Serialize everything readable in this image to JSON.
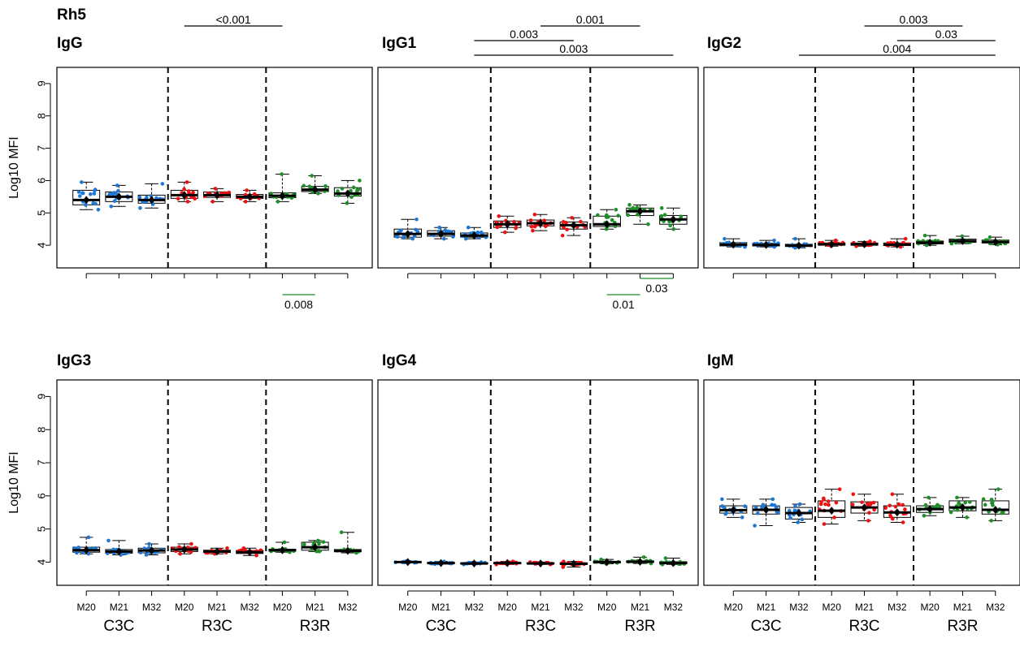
{
  "figure_title": "Rh5",
  "ylabel": "Log10 MFI",
  "colors": {
    "C3C": "#1f77d4",
    "R3C": "#ee1111",
    "R3R": "#1f8f2a"
  },
  "chart_data": [
    {
      "type": "box",
      "title": "IgG",
      "ylabel": "Log10 MFI",
      "ylim": [
        3.3,
        9.5
      ],
      "yticks": [
        "4",
        "5",
        "6",
        "7",
        "8",
        "9"
      ],
      "groups": [
        "C3C",
        "R3C",
        "R3R"
      ],
      "categories": [
        "M20",
        "M21",
        "M32",
        "M20",
        "M21",
        "M32",
        "M20",
        "M21",
        "M32"
      ],
      "show_x_labels": false,
      "series": [
        {
          "group": "C3C",
          "timepoint": "M20",
          "min": 5.1,
          "q1": 5.25,
          "median": 5.4,
          "q3": 5.7,
          "max": 5.95
        },
        {
          "group": "C3C",
          "timepoint": "M21",
          "min": 5.2,
          "q1": 5.35,
          "median": 5.5,
          "q3": 5.65,
          "max": 5.85
        },
        {
          "group": "C3C",
          "timepoint": "M32",
          "min": 5.15,
          "q1": 5.3,
          "median": 5.4,
          "q3": 5.55,
          "max": 5.9
        },
        {
          "group": "R3C",
          "timepoint": "M20",
          "min": 5.35,
          "q1": 5.45,
          "median": 5.55,
          "q3": 5.7,
          "max": 5.95
        },
        {
          "group": "R3C",
          "timepoint": "M21",
          "min": 5.35,
          "q1": 5.48,
          "median": 5.55,
          "q3": 5.65,
          "max": 5.75
        },
        {
          "group": "R3C",
          "timepoint": "M32",
          "min": 5.35,
          "q1": 5.45,
          "median": 5.5,
          "q3": 5.57,
          "max": 5.7
        },
        {
          "group": "R3R",
          "timepoint": "M20",
          "min": 5.35,
          "q1": 5.47,
          "median": 5.53,
          "q3": 5.62,
          "max": 6.2
        },
        {
          "group": "R3R",
          "timepoint": "M21",
          "min": 5.6,
          "q1": 5.66,
          "median": 5.72,
          "q3": 5.82,
          "max": 6.15
        },
        {
          "group": "R3R",
          "timepoint": "M32",
          "min": 5.3,
          "q1": 5.52,
          "median": 5.6,
          "q3": 5.78,
          "max": 6.0
        }
      ],
      "annotations": [
        {
          "text": "<0.001",
          "from": 4,
          "to": 7,
          "position": "top",
          "level": 1,
          "color": "#000000"
        },
        {
          "text": "0.008",
          "from": 7,
          "to": 8,
          "position": "bottom",
          "level": 1,
          "color": "#1f8f2a"
        }
      ]
    },
    {
      "type": "box",
      "title": "IgG1",
      "ylim": [
        3.3,
        9.5
      ],
      "groups": [
        "C3C",
        "R3C",
        "R3R"
      ],
      "categories": [
        "M20",
        "M21",
        "M32",
        "M20",
        "M21",
        "M32",
        "M20",
        "M21",
        "M32"
      ],
      "show_x_labels": false,
      "series": [
        {
          "group": "C3C",
          "timepoint": "M20",
          "min": 4.2,
          "q1": 4.25,
          "median": 4.35,
          "q3": 4.5,
          "max": 4.8
        },
        {
          "group": "C3C",
          "timepoint": "M21",
          "min": 4.2,
          "q1": 4.28,
          "median": 4.35,
          "q3": 4.45,
          "max": 4.55
        },
        {
          "group": "C3C",
          "timepoint": "M32",
          "min": 4.2,
          "q1": 4.25,
          "median": 4.3,
          "q3": 4.38,
          "max": 4.55
        },
        {
          "group": "R3C",
          "timepoint": "M20",
          "min": 4.4,
          "q1": 4.55,
          "median": 4.65,
          "q3": 4.75,
          "max": 4.9
        },
        {
          "group": "R3C",
          "timepoint": "M21",
          "min": 4.45,
          "q1": 4.6,
          "median": 4.68,
          "q3": 4.78,
          "max": 4.95
        },
        {
          "group": "R3C",
          "timepoint": "M32",
          "min": 4.3,
          "q1": 4.5,
          "median": 4.62,
          "q3": 4.72,
          "max": 4.85
        },
        {
          "group": "R3R",
          "timepoint": "M20",
          "min": 4.5,
          "q1": 4.58,
          "median": 4.65,
          "q3": 4.9,
          "max": 5.1
        },
        {
          "group": "R3R",
          "timepoint": "M21",
          "min": 4.65,
          "q1": 4.92,
          "median": 5.05,
          "q3": 5.15,
          "max": 5.25
        },
        {
          "group": "R3R",
          "timepoint": "M32",
          "min": 4.5,
          "q1": 4.65,
          "median": 4.8,
          "q3": 4.92,
          "max": 5.15
        }
      ],
      "annotations": [
        {
          "text": "0.003",
          "from": 3,
          "to": 6,
          "position": "top",
          "level": 2,
          "color": "#000000"
        },
        {
          "text": "0.001",
          "from": 5,
          "to": 8,
          "position": "top",
          "level": 1,
          "color": "#000000"
        },
        {
          "text": "0.003",
          "from": 3,
          "to": 9,
          "position": "top",
          "level": 3,
          "color": "#000000"
        },
        {
          "text": "0.03",
          "from": 8,
          "to": 9,
          "position": "bottom",
          "level": 1,
          "color": "#1f8f2a"
        },
        {
          "text": "0.01",
          "from": 7,
          "to": 8,
          "position": "bottom",
          "level": 2,
          "color": "#1f8f2a"
        }
      ]
    },
    {
      "type": "box",
      "title": "IgG2",
      "ylim": [
        3.3,
        9.5
      ],
      "groups": [
        "C3C",
        "R3C",
        "R3R"
      ],
      "categories": [
        "M20",
        "M21",
        "M32",
        "M20",
        "M21",
        "M32",
        "M20",
        "M21",
        "M32"
      ],
      "show_x_labels": false,
      "series": [
        {
          "group": "C3C",
          "timepoint": "M20",
          "min": 3.95,
          "q1": 3.98,
          "median": 4.02,
          "q3": 4.08,
          "max": 4.2
        },
        {
          "group": "C3C",
          "timepoint": "M21",
          "min": 3.95,
          "q1": 3.98,
          "median": 4.01,
          "q3": 4.06,
          "max": 4.15
        },
        {
          "group": "C3C",
          "timepoint": "M32",
          "min": 3.92,
          "q1": 3.96,
          "median": 3.99,
          "q3": 4.03,
          "max": 4.2
        },
        {
          "group": "R3C",
          "timepoint": "M20",
          "min": 3.97,
          "q1": 4.0,
          "median": 4.03,
          "q3": 4.07,
          "max": 4.15
        },
        {
          "group": "R3C",
          "timepoint": "M21",
          "min": 3.97,
          "q1": 4.0,
          "median": 4.03,
          "q3": 4.07,
          "max": 4.12
        },
        {
          "group": "R3C",
          "timepoint": "M32",
          "min": 3.95,
          "q1": 3.99,
          "median": 4.02,
          "q3": 4.07,
          "max": 4.2
        },
        {
          "group": "R3R",
          "timepoint": "M20",
          "min": 4.0,
          "q1": 4.04,
          "median": 4.08,
          "q3": 4.13,
          "max": 4.3
        },
        {
          "group": "R3R",
          "timepoint": "M21",
          "min": 4.05,
          "q1": 4.09,
          "median": 4.13,
          "q3": 4.19,
          "max": 4.28
        },
        {
          "group": "R3R",
          "timepoint": "M32",
          "min": 4.02,
          "q1": 4.07,
          "median": 4.1,
          "q3": 4.16,
          "max": 4.25
        }
      ],
      "annotations": [
        {
          "text": "0.003",
          "from": 5,
          "to": 8,
          "position": "top",
          "level": 1,
          "color": "#000000"
        },
        {
          "text": "0.03",
          "from": 6,
          "to": 9,
          "position": "top",
          "level": 2,
          "color": "#000000"
        },
        {
          "text": "0.004",
          "from": 3,
          "to": 9,
          "position": "top",
          "level": 3,
          "color": "#000000"
        }
      ]
    },
    {
      "type": "box",
      "title": "IgG3",
      "ylabel": "Log10 MFI",
      "ylim": [
        3.3,
        9.5
      ],
      "yticks": [
        "4",
        "5",
        "6",
        "7",
        "8",
        "9"
      ],
      "groups": [
        "C3C",
        "R3C",
        "R3R"
      ],
      "categories": [
        "M20",
        "M21",
        "M32",
        "M20",
        "M21",
        "M32",
        "M20",
        "M21",
        "M32"
      ],
      "show_x_labels": true,
      "series": [
        {
          "group": "C3C",
          "timepoint": "M20",
          "min": 4.25,
          "q1": 4.3,
          "median": 4.36,
          "q3": 4.45,
          "max": 4.75
        },
        {
          "group": "C3C",
          "timepoint": "M21",
          "min": 4.22,
          "q1": 4.27,
          "median": 4.32,
          "q3": 4.38,
          "max": 4.65
        },
        {
          "group": "C3C",
          "timepoint": "M32",
          "min": 4.22,
          "q1": 4.28,
          "median": 4.35,
          "q3": 4.42,
          "max": 4.55
        },
        {
          "group": "R3C",
          "timepoint": "M20",
          "min": 4.25,
          "q1": 4.32,
          "median": 4.38,
          "q3": 4.45,
          "max": 4.55
        },
        {
          "group": "R3C",
          "timepoint": "M21",
          "min": 4.25,
          "q1": 4.29,
          "median": 4.32,
          "q3": 4.36,
          "max": 4.42
        },
        {
          "group": "R3C",
          "timepoint": "M32",
          "min": 4.2,
          "q1": 4.26,
          "median": 4.3,
          "q3": 4.35,
          "max": 4.42
        },
        {
          "group": "R3R",
          "timepoint": "M20",
          "min": 4.3,
          "q1": 4.33,
          "median": 4.36,
          "q3": 4.39,
          "max": 4.6
        },
        {
          "group": "R3R",
          "timepoint": "M21",
          "min": 4.32,
          "q1": 4.36,
          "median": 4.45,
          "q3": 4.6,
          "max": 4.65
        },
        {
          "group": "R3R",
          "timepoint": "M32",
          "min": 4.28,
          "q1": 4.31,
          "median": 4.34,
          "q3": 4.38,
          "max": 4.9
        }
      ],
      "annotations": []
    },
    {
      "type": "box",
      "title": "IgG4",
      "ylim": [
        3.3,
        9.5
      ],
      "groups": [
        "C3C",
        "R3C",
        "R3R"
      ],
      "categories": [
        "M20",
        "M21",
        "M32",
        "M20",
        "M21",
        "M32",
        "M20",
        "M21",
        "M32"
      ],
      "show_x_labels": true,
      "series": [
        {
          "group": "C3C",
          "timepoint": "M20",
          "min": 3.98,
          "q1": 3.99,
          "median": 4.0,
          "q3": 4.01,
          "max": 4.03
        },
        {
          "group": "C3C",
          "timepoint": "M21",
          "min": 3.94,
          "q1": 3.96,
          "median": 3.97,
          "q3": 3.99,
          "max": 4.02
        },
        {
          "group": "C3C",
          "timepoint": "M32",
          "min": 3.93,
          "q1": 3.95,
          "median": 3.96,
          "q3": 3.98,
          "max": 4.0
        },
        {
          "group": "R3C",
          "timepoint": "M20",
          "min": 3.93,
          "q1": 3.95,
          "median": 3.97,
          "q3": 3.99,
          "max": 4.02
        },
        {
          "group": "R3C",
          "timepoint": "M21",
          "min": 3.93,
          "q1": 3.95,
          "median": 3.96,
          "q3": 3.98,
          "max": 4.0
        },
        {
          "group": "R3C",
          "timepoint": "M32",
          "min": 3.85,
          "q1": 3.93,
          "median": 3.95,
          "q3": 3.98,
          "max": 4.02
        },
        {
          "group": "R3R",
          "timepoint": "M20",
          "min": 3.95,
          "q1": 3.98,
          "median": 4.0,
          "q3": 4.02,
          "max": 4.08
        },
        {
          "group": "R3R",
          "timepoint": "M21",
          "min": 3.96,
          "q1": 3.99,
          "median": 4.01,
          "q3": 4.04,
          "max": 4.15
        },
        {
          "group": "R3R",
          "timepoint": "M32",
          "min": 3.93,
          "q1": 3.95,
          "median": 3.97,
          "q3": 4.01,
          "max": 4.12
        }
      ],
      "annotations": []
    },
    {
      "type": "box",
      "title": "IgM",
      "ylim": [
        3.3,
        9.5
      ],
      "groups": [
        "C3C",
        "R3C",
        "R3R"
      ],
      "categories": [
        "M20",
        "M21",
        "M32",
        "M20",
        "M21",
        "M32",
        "M20",
        "M21",
        "M32"
      ],
      "show_x_labels": true,
      "series": [
        {
          "group": "C3C",
          "timepoint": "M20",
          "min": 5.35,
          "q1": 5.48,
          "median": 5.57,
          "q3": 5.7,
          "max": 5.9
        },
        {
          "group": "C3C",
          "timepoint": "M21",
          "min": 5.1,
          "q1": 5.45,
          "median": 5.58,
          "q3": 5.7,
          "max": 5.9
        },
        {
          "group": "C3C",
          "timepoint": "M32",
          "min": 5.2,
          "q1": 5.3,
          "median": 5.48,
          "q3": 5.65,
          "max": 5.75
        },
        {
          "group": "R3C",
          "timepoint": "M20",
          "min": 5.15,
          "q1": 5.35,
          "median": 5.55,
          "q3": 5.85,
          "max": 6.2
        },
        {
          "group": "R3C",
          "timepoint": "M21",
          "min": 5.25,
          "q1": 5.48,
          "median": 5.65,
          "q3": 5.82,
          "max": 6.05
        },
        {
          "group": "R3C",
          "timepoint": "M32",
          "min": 5.2,
          "q1": 5.35,
          "median": 5.5,
          "q3": 5.7,
          "max": 6.05
        },
        {
          "group": "R3R",
          "timepoint": "M20",
          "min": 5.4,
          "q1": 5.5,
          "median": 5.6,
          "q3": 5.7,
          "max": 5.95
        },
        {
          "group": "R3R",
          "timepoint": "M21",
          "min": 5.35,
          "q1": 5.55,
          "median": 5.65,
          "q3": 5.85,
          "max": 5.95
        },
        {
          "group": "R3R",
          "timepoint": "M32",
          "min": 5.25,
          "q1": 5.45,
          "median": 5.58,
          "q3": 5.85,
          "max": 6.2
        }
      ],
      "annotations": []
    }
  ]
}
